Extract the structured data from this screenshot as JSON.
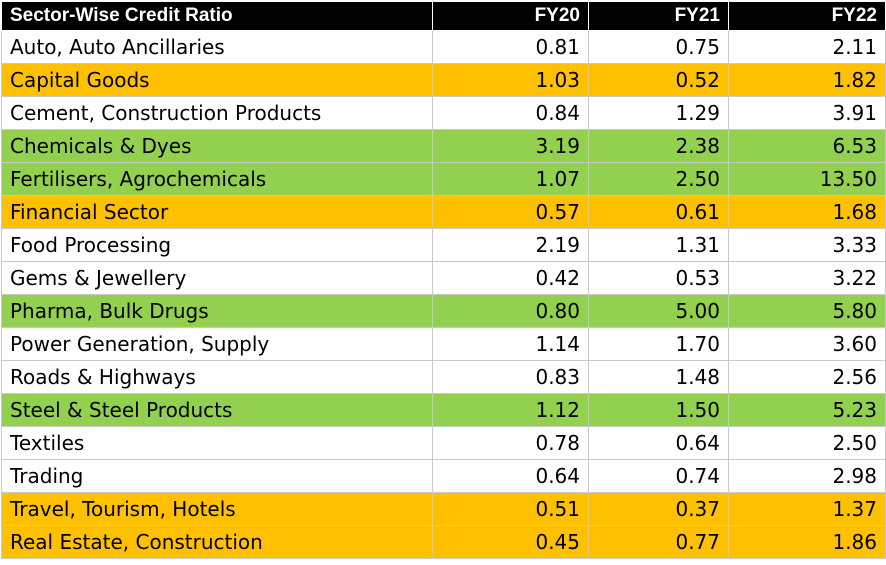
{
  "chart_data": {
    "type": "table",
    "title": "Sector-Wise Credit Ratio",
    "columns": [
      "FY20",
      "FY21",
      "FY22"
    ],
    "colors": {
      "header_bg": "#000000",
      "header_text": "#ffffff",
      "orange": "#ffc000",
      "green": "#92d050",
      "none": "#ffffff"
    },
    "rows": [
      {
        "sector": "Auto, Auto Ancillaries",
        "values": [
          "0.81",
          "0.75",
          "2.11"
        ],
        "highlight": "none"
      },
      {
        "sector": "Capital Goods",
        "values": [
          "1.03",
          "0.52",
          "1.82"
        ],
        "highlight": "orange"
      },
      {
        "sector": "Cement, Construction Products",
        "values": [
          "0.84",
          "1.29",
          "3.91"
        ],
        "highlight": "none"
      },
      {
        "sector": "Chemicals & Dyes",
        "values": [
          "3.19",
          "2.38",
          "6.53"
        ],
        "highlight": "green"
      },
      {
        "sector": "Fertilisers, Agrochemicals",
        "values": [
          "1.07",
          "2.50",
          "13.50"
        ],
        "highlight": "green"
      },
      {
        "sector": "Financial Sector",
        "values": [
          "0.57",
          "0.61",
          "1.68"
        ],
        "highlight": "orange"
      },
      {
        "sector": "Food Processing",
        "values": [
          "2.19",
          "1.31",
          "3.33"
        ],
        "highlight": "none"
      },
      {
        "sector": "Gems & Jewellery",
        "values": [
          "0.42",
          "0.53",
          "3.22"
        ],
        "highlight": "none"
      },
      {
        "sector": "Pharma, Bulk Drugs",
        "values": [
          "0.80",
          "5.00",
          "5.80"
        ],
        "highlight": "green"
      },
      {
        "sector": "Power Generation, Supply",
        "values": [
          "1.14",
          "1.70",
          "3.60"
        ],
        "highlight": "none"
      },
      {
        "sector": "Roads & Highways",
        "values": [
          "0.83",
          "1.48",
          "2.56"
        ],
        "highlight": "none"
      },
      {
        "sector": "Steel & Steel Products",
        "values": [
          "1.12",
          "1.50",
          "5.23"
        ],
        "highlight": "green"
      },
      {
        "sector": "Textiles",
        "values": [
          "0.78",
          "0.64",
          "2.50"
        ],
        "highlight": "none"
      },
      {
        "sector": "Trading",
        "values": [
          "0.64",
          "0.74",
          "2.98"
        ],
        "highlight": "none"
      },
      {
        "sector": "Travel, Tourism, Hotels",
        "values": [
          "0.51",
          "0.37",
          "1.37"
        ],
        "highlight": "orange"
      },
      {
        "sector": "Real Estate, Construction",
        "values": [
          "0.45",
          "0.77",
          "1.86"
        ],
        "highlight": "orange"
      }
    ]
  }
}
